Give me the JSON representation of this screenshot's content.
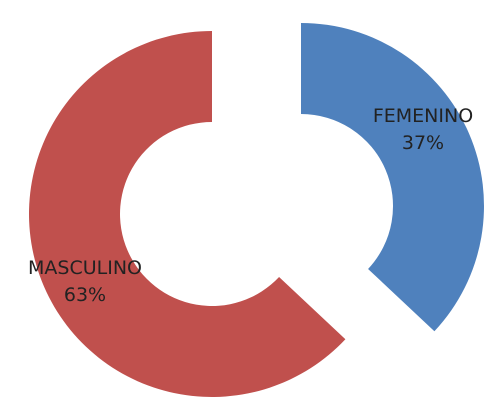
{
  "chart_data": {
    "type": "pie",
    "style": "exploded doughnut",
    "slices": [
      {
        "label": "FEMENINO",
        "value": 37,
        "value_label": "37%",
        "color": "#4F81BD"
      },
      {
        "label": "MASCULINO",
        "value": 63,
        "value_label": "63%",
        "color": "#C0504D"
      }
    ],
    "legend": "none",
    "labels": "category name and percentage on each slice"
  }
}
